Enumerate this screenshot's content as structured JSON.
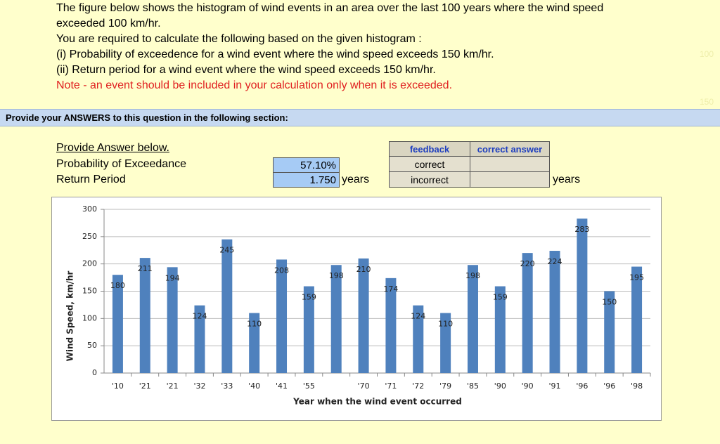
{
  "question": {
    "lines": [
      "The figure below shows the histogram of wind events in an area over the last 100 years where the wind speed",
      "exceeded 100 km/hr.",
      "You are required to calculate the following based on the given histogram :",
      "(i) Probability of exceedence for a wind event  where the wind speed exceeds 150 km/hr.",
      "(ii) Return period for a wind event where the wind speed exceeds 150 km/hr."
    ],
    "note": "Note - an event should be included in your calculation only when it is exceeded."
  },
  "side_notes": [
    "100",
    "150"
  ],
  "section_header": "Provide your ANSWERS to this question in the following section:",
  "answers": {
    "heading": "Provide Answer below.",
    "rows": [
      {
        "label": "Probability of Exceedance",
        "value": "57.10%"
      },
      {
        "label": "Return Period",
        "value": "1.750",
        "unit": "years"
      }
    ]
  },
  "feedback": {
    "header": "feedback",
    "values": [
      "correct",
      "incorrect"
    ],
    "answer_header": "correct answer",
    "answer_unit": "years"
  },
  "chart_data": {
    "type": "bar",
    "x_label": "Year when the wind event occurred",
    "y_label": "Wind Speed, km/hr",
    "categories": [
      "'10",
      "'21",
      "'21",
      "'32",
      "'33",
      "'40",
      "'41",
      "'55",
      null,
      "'70",
      "'71",
      "'72",
      "'79",
      "'85",
      "'90",
      "'90",
      "'91",
      "'96",
      "'96",
      "'98"
    ],
    "values": [
      180,
      211,
      194,
      124,
      245,
      110,
      208,
      159,
      198,
      210,
      174,
      124,
      110,
      198,
      159,
      220,
      224,
      283,
      150,
      195
    ],
    "color": "#4f81bd",
    "ylim": [
      0,
      300
    ],
    "yticks": [
      0,
      50,
      100,
      150,
      200,
      250,
      300
    ],
    "grid": true
  }
}
